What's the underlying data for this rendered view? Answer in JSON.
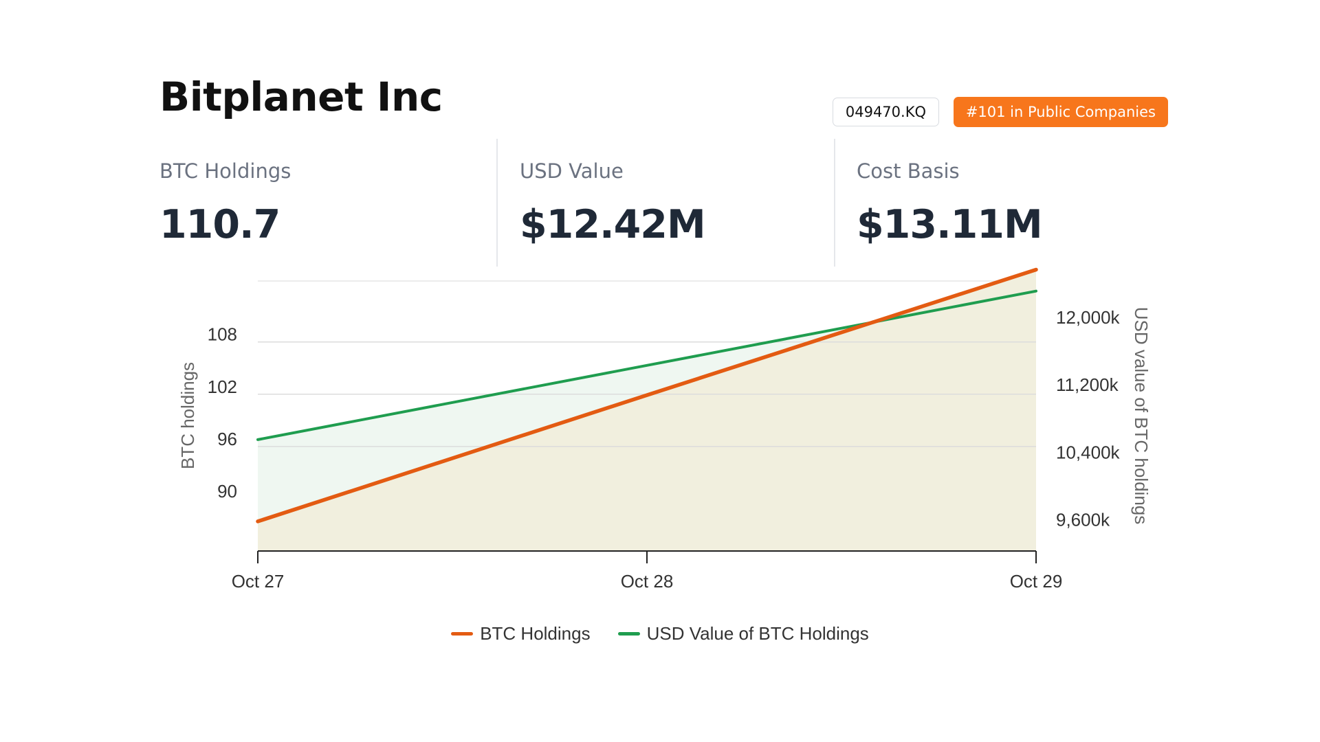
{
  "header": {
    "title": "Bitplanet Inc",
    "ticker": "049470.KQ",
    "rank_badge": "#101 in Public Companies"
  },
  "stats": [
    {
      "label": "BTC Holdings",
      "value": "110.7"
    },
    {
      "label": "USD Value",
      "value": "$12.42M"
    },
    {
      "label": "Cost Basis",
      "value": "$13.11M"
    }
  ],
  "colors": {
    "accent": "#f7761c",
    "btc_line": "#e35b12",
    "btc_fill": "#f1efde",
    "usd_line": "#1f9d4f",
    "usd_fill": "#eff7f1"
  },
  "chart_data": {
    "type": "area",
    "x": [
      "Oct 27",
      "Oct 28",
      "Oct 29"
    ],
    "x_ticks": [
      "Oct 27",
      "Oct 28",
      "Oct 29"
    ],
    "series": [
      {
        "name": "BTC Holdings",
        "axis": "left",
        "values": [
          87.4,
          101.9,
          116.3
        ]
      },
      {
        "name": "USD Value of BTC Holdings",
        "axis": "right",
        "values": [
          10600,
          11480,
          12360
        ]
      }
    ],
    "ylabel_left": "BTC holdings",
    "ylabel_right": "USD value of BTC holdings",
    "y_left_ticks": [
      "90",
      "96",
      "102",
      "108"
    ],
    "y_left_tick_values": [
      90,
      96,
      102,
      108
    ],
    "y_right_ticks": [
      "9,600k",
      "10,400k",
      "11,200k",
      "12,000k"
    ],
    "y_right_tick_values": [
      9600,
      10400,
      11200,
      12000
    ],
    "ylim_left": [
      84.0,
      115.0
    ],
    "ylim_right": [
      9280,
      12480
    ],
    "grid": true,
    "legend_position": "bottom-center"
  }
}
